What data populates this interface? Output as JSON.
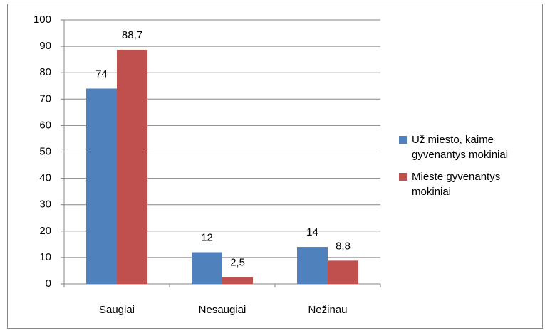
{
  "chart_data": {
    "type": "bar",
    "categories": [
      "Saugiai",
      "Nesaugiai",
      "Nežinau"
    ],
    "series": [
      {
        "name": "Už miesto, kaime gyvenantys mokiniai",
        "color": "#4f81bd",
        "values": [
          74,
          12,
          14
        ],
        "value_labels": [
          "74",
          "12",
          "14"
        ]
      },
      {
        "name": "Mieste gyvenantys mokiniai",
        "color": "#c0504d",
        "values": [
          88.7,
          2.5,
          8.8
        ],
        "value_labels": [
          "88,7",
          "2,5",
          "8,8"
        ]
      }
    ],
    "ylim": [
      0,
      100
    ],
    "yticks": [
      0,
      10,
      20,
      30,
      40,
      50,
      60,
      70,
      80,
      90,
      100
    ],
    "grid": true,
    "legend": "right"
  }
}
